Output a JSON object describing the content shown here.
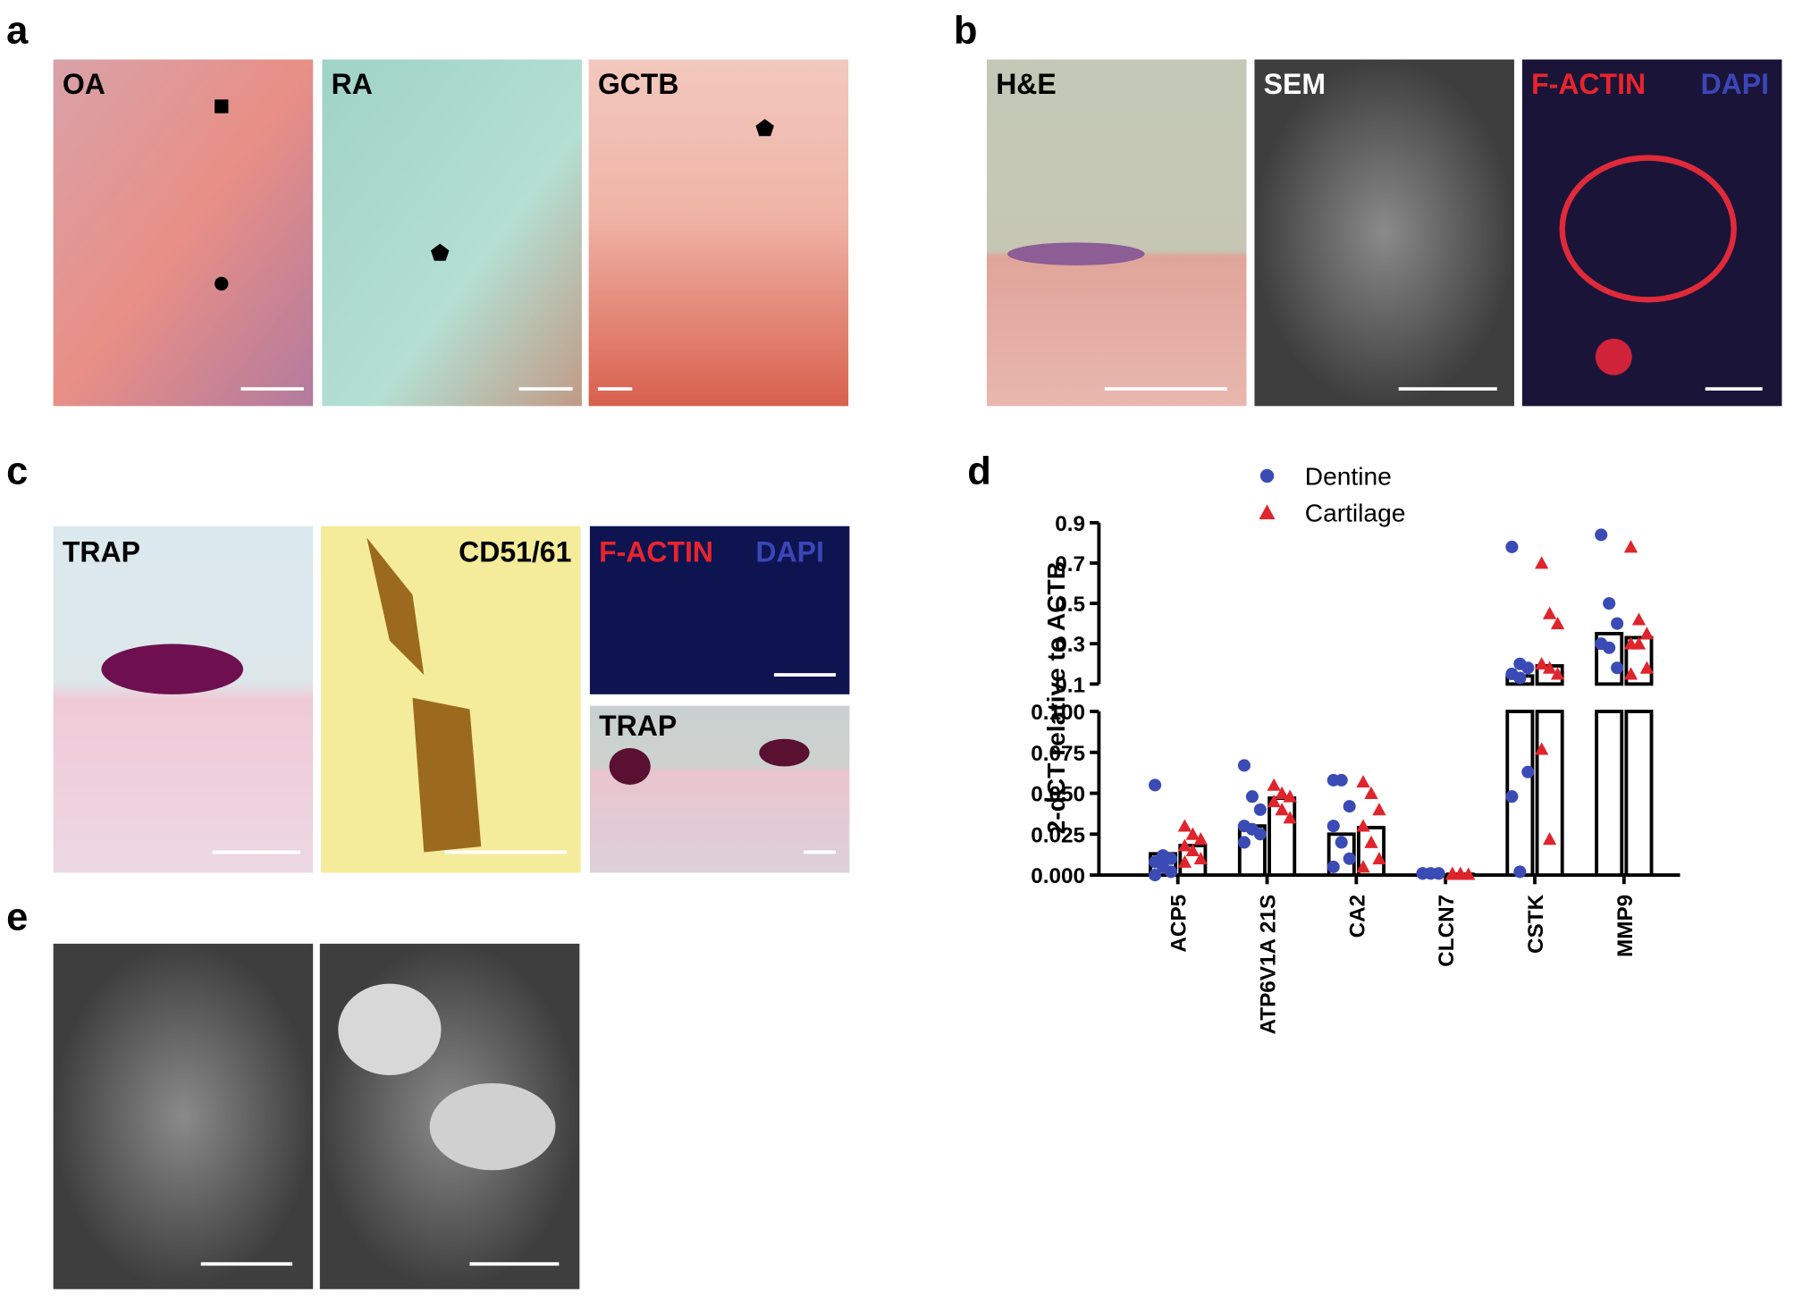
{
  "panels": [
    {
      "label": "a",
      "images": [
        {
          "labels": [
            "OA"
          ]
        },
        {
          "labels": [
            "RA"
          ]
        },
        {
          "labels": [
            "GCTB"
          ]
        }
      ]
    },
    {
      "label": "b",
      "images": [
        {
          "labels": [
            "H&E"
          ]
        },
        {
          "labels": [
            "SEM"
          ]
        },
        {
          "labels": [
            "F-ACTIN",
            "DAPI"
          ]
        }
      ]
    },
    {
      "label": "c",
      "images": [
        {
          "labels": [
            "TRAP"
          ]
        },
        {
          "labels": [
            "CD51/61"
          ]
        },
        {
          "labels": [
            "F-ACTIN",
            "DAPI"
          ]
        },
        {
          "labels": [
            "TRAP"
          ]
        }
      ]
    },
    {
      "label": "d"
    },
    {
      "label": "e"
    }
  ],
  "chart_data": {
    "type": "scatter-bar",
    "y_label": "2-dCT relative to ACTB",
    "categories": [
      "ACP5",
      "ATP6V1A 21S",
      "CA2",
      "CLCN7",
      "CSTK",
      "MMP9"
    ],
    "segments": [
      {
        "ylim": [
          0,
          0.1
        ],
        "yticks": [
          {
            "value": 0,
            "label": "0.000"
          },
          {
            "value": 0.025,
            "label": "0.025"
          },
          {
            "value": 0.05,
            "label": "0.050"
          },
          {
            "value": 0.075,
            "label": "0.075"
          },
          {
            "value": 0.1,
            "label": "0.100"
          }
        ]
      },
      {
        "ylim": [
          0.1,
          0.9
        ],
        "yticks": [
          0.1,
          0.3,
          0.5,
          0.7,
          0.9
        ]
      }
    ],
    "series": [
      {
        "name": "Dentine",
        "color": "#3b4bb5",
        "marker": "circle",
        "means": [
          0.013,
          0.03,
          0.025,
          0.001,
          0.14,
          0.35
        ],
        "points": [
          [
            0.055,
            0.012,
            0.01,
            0.008,
            0.005,
            0.002,
            0
          ],
          [
            0.067,
            0.048,
            0.04,
            0.03,
            0.028,
            0.025,
            0.02
          ],
          [
            0.058,
            0.058,
            0.042,
            0.03,
            0.02,
            0.01,
            0.005
          ],
          [
            0.001,
            0.001,
            0.001,
            0.001,
            0.001,
            0.001
          ],
          [
            0.78,
            0.2,
            0.18,
            0.15,
            0.13,
            0.063,
            0.048,
            0.002
          ],
          [
            0.84,
            0.5,
            0.4,
            0.3,
            0.28,
            0.18
          ]
        ]
      },
      {
        "name": "Cartilage",
        "color": "#e0242c",
        "marker": "triangle",
        "means": [
          0.018,
          0.047,
          0.029,
          0.0005,
          0.19,
          0.33
        ],
        "points": [
          [
            0.03,
            0.025,
            0.022,
            0.018,
            0.015,
            0.01,
            0.008
          ],
          [
            0.055,
            0.05,
            0.048,
            0.045,
            0.04,
            0.035
          ],
          [
            0.057,
            0.05,
            0.04,
            0.03,
            0.02,
            0.01,
            0.005
          ],
          [
            0.001,
            0.001,
            0.0005,
            0.0005,
            0.0005
          ],
          [
            0.7,
            0.45,
            0.4,
            0.2,
            0.18,
            0.15,
            0.077,
            0.022
          ],
          [
            0.78,
            0.42,
            0.35,
            0.3,
            0.3,
            0.18,
            0.15
          ]
        ]
      }
    ]
  }
}
